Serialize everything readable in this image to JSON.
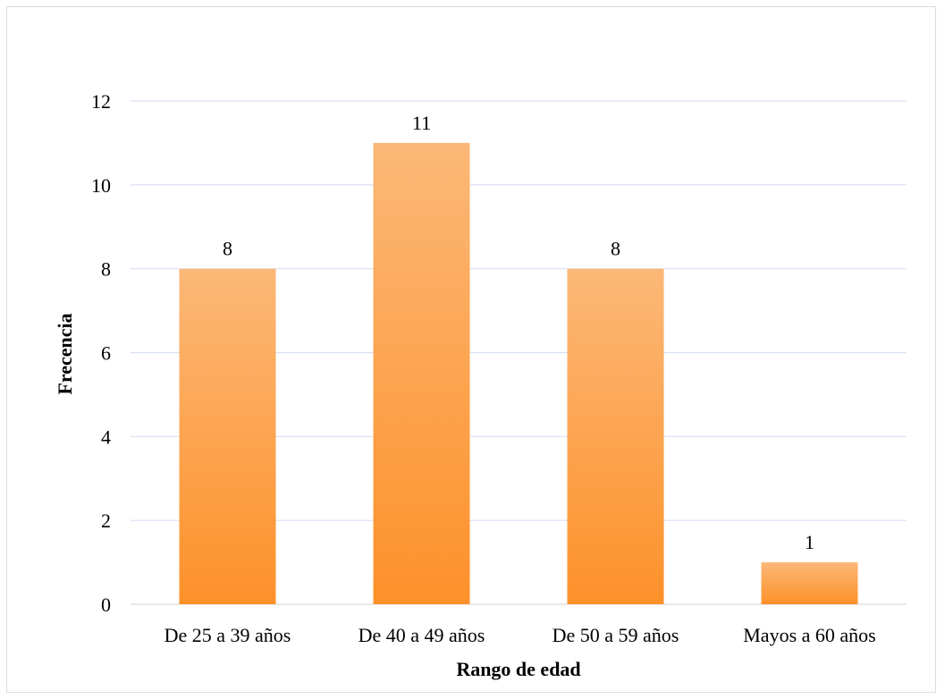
{
  "chart_data": {
    "type": "bar",
    "title": "",
    "xlabel": "Rango de edad",
    "ylabel": "Frecencia",
    "categories": [
      "De 25 a 39 años",
      "De 40 a 49 años",
      "De 50 a 59 años",
      "Mayos a 60 años"
    ],
    "values": [
      8,
      11,
      8,
      1
    ],
    "data_labels": [
      "8",
      "11",
      "8",
      "1"
    ],
    "ylim": [
      0,
      12
    ],
    "yticks": [
      0,
      2,
      4,
      6,
      8,
      10,
      12
    ],
    "ytick_labels": [
      "0",
      "2",
      "4",
      "6",
      "8",
      "10",
      "12"
    ],
    "grid": true,
    "legend": "none",
    "colors": {
      "bar_top": "#fcb877",
      "bar_bottom": "#fd912a",
      "grid": "#d9e1f2",
      "axis": "#d9d9d9",
      "frame": "#d6dce5"
    }
  }
}
